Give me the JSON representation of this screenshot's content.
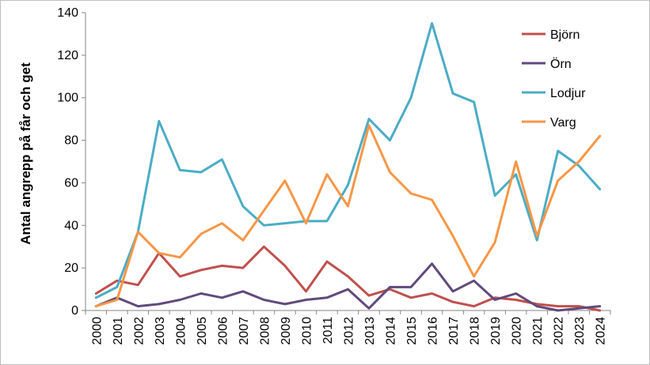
{
  "chart_data": {
    "type": "line",
    "title": "",
    "xlabel": "",
    "ylabel": "Antal angrepp på får och get",
    "ylim": [
      0,
      140
    ],
    "yticks": [
      0,
      20,
      40,
      60,
      80,
      100,
      120,
      140
    ],
    "grid": false,
    "legend_position": "top-right",
    "categories": [
      "2000",
      "2001",
      "2002",
      "2003",
      "2004",
      "2005",
      "2006",
      "2007",
      "2008",
      "2009",
      "2010",
      "2011",
      "2012",
      "2013",
      "2014",
      "2015",
      "2016",
      "2017",
      "2018",
      "2019",
      "2020",
      "2021",
      "2022",
      "2023",
      "2024"
    ],
    "series": [
      {
        "name": "Björn",
        "color": "#c0504d",
        "values": [
          8,
          14,
          12,
          27,
          16,
          19,
          21,
          20,
          30,
          21,
          9,
          23,
          16,
          7,
          10,
          6,
          8,
          4,
          2,
          6,
          5,
          3,
          2,
          2,
          0
        ]
      },
      {
        "name": "Örn",
        "color": "#604a7b",
        "values": [
          2,
          6,
          2,
          3,
          5,
          8,
          6,
          9,
          5,
          3,
          5,
          6,
          10,
          1,
          11,
          11,
          22,
          9,
          14,
          5,
          8,
          2,
          0,
          1,
          2
        ]
      },
      {
        "name": "Lodjur",
        "color": "#4bacc6",
        "values": [
          6,
          11,
          37,
          89,
          66,
          65,
          71,
          49,
          40,
          41,
          42,
          42,
          59,
          90,
          80,
          100,
          135,
          102,
          98,
          54,
          64,
          33,
          75,
          68,
          57
        ]
      },
      {
        "name": "Varg",
        "color": "#f79646",
        "values": [
          2,
          5,
          37,
          27,
          25,
          36,
          41,
          33,
          47,
          61,
          41,
          64,
          49,
          87,
          65,
          55,
          52,
          35,
          16,
          32,
          70,
          35,
          61,
          70,
          82
        ]
      }
    ]
  }
}
